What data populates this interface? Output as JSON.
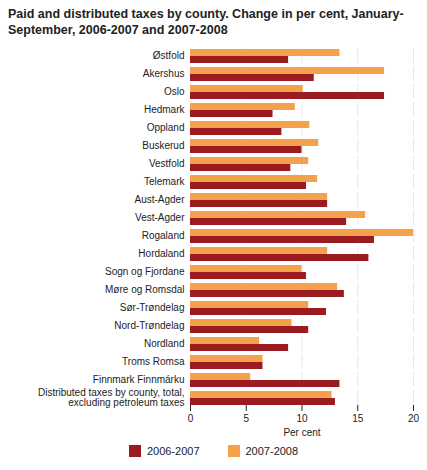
{
  "chart_data": {
    "type": "bar",
    "orientation": "horizontal",
    "title": "Paid and distributed taxes by county. Change in per cent, January-September, 2006-2007 and 2007-2008",
    "x_label": "Per cent",
    "categories": [
      "Østfold",
      "Akershus",
      "Oslo",
      "Hedmark",
      "Oppland",
      "Buskerud",
      "Vestfold",
      "Telemark",
      "Aust-Agder",
      "Vest-Agder",
      "Rogaland",
      "Hordaland",
      "Sogn og Fjordane",
      "Møre og Romsdal",
      "Sør-Trøndelag",
      "Nord-Trøndelag",
      "Nordland",
      "Troms Romsa",
      "Finnmark Finnmárku",
      "Distributed taxes by county, total, excluding petroleum taxes"
    ],
    "series": [
      {
        "name": "2006-2007",
        "color": "#9b1c20",
        "values": [
          8.8,
          11.1,
          17.4,
          7.4,
          8.2,
          10.0,
          9.0,
          10.4,
          12.3,
          14.0,
          16.5,
          16.0,
          10.4,
          13.8,
          12.2,
          10.6,
          8.8,
          6.5,
          13.4,
          13.0
        ]
      },
      {
        "name": "2007-2008",
        "color": "#f5a04a",
        "values": [
          13.4,
          17.4,
          10.1,
          9.4,
          10.7,
          11.5,
          10.6,
          11.4,
          12.3,
          15.7,
          20.0,
          12.3,
          10.0,
          13.2,
          10.6,
          9.1,
          6.2,
          6.5,
          5.4,
          12.7
        ]
      }
    ],
    "xlim": [
      0,
      20
    ],
    "xticks": [
      0,
      5,
      10,
      15,
      20
    ],
    "grid": true,
    "legend": "bottom"
  }
}
